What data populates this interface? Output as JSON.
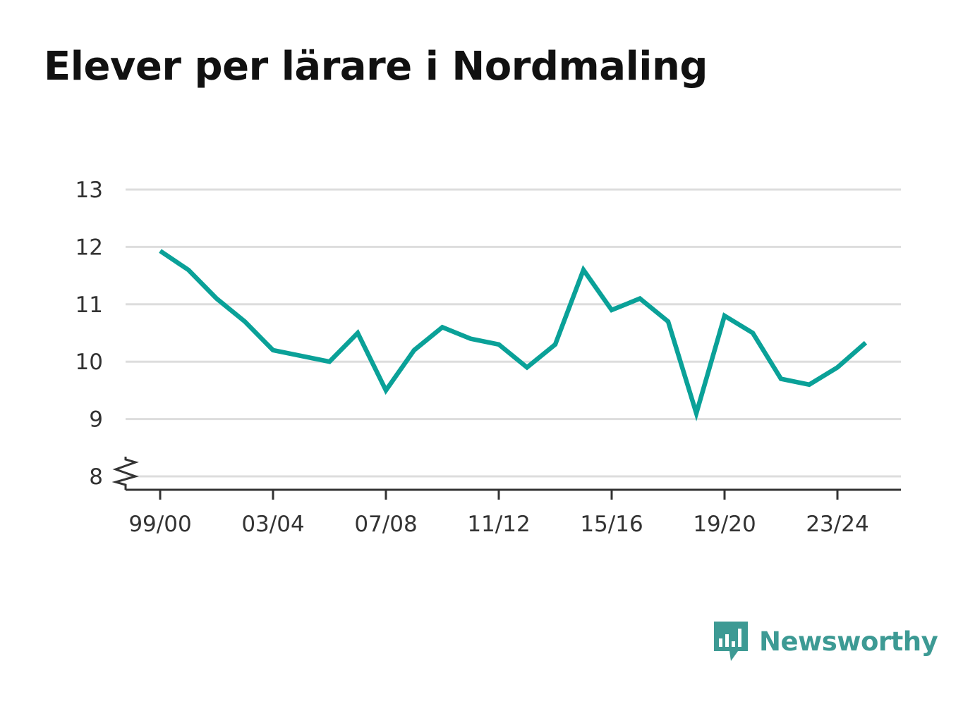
{
  "title": "Elever per lärare i Nordmaling",
  "brand": {
    "name": "Newsworthy",
    "color": "#3d9a94",
    "icon": "newsworthy-bar-chart-icon"
  },
  "colors": {
    "line": "#0aa198",
    "grid": "#dddddd",
    "axis": "#333333"
  },
  "chart_data": {
    "type": "line",
    "title": "Elever per lärare i Nordmaling",
    "xlabel": "",
    "ylabel": "",
    "ylim": [
      8,
      13
    ],
    "y_axis_break": true,
    "grid": true,
    "yticks": [
      8,
      9,
      10,
      11,
      12,
      13
    ],
    "xtick_labels": [
      "99/00",
      "03/04",
      "07/08",
      "11/12",
      "15/16",
      "19/20",
      "23/24"
    ],
    "x": [
      "99/00",
      "00/01",
      "01/02",
      "02/03",
      "03/04",
      "04/05",
      "05/06",
      "06/07",
      "07/08",
      "08/09",
      "09/10",
      "10/11",
      "11/12",
      "12/13",
      "13/14",
      "14/15",
      "15/16",
      "16/17",
      "17/18",
      "18/19",
      "19/20",
      "20/21",
      "21/22",
      "22/23",
      "23/24",
      "24/25"
    ],
    "series": [
      {
        "values": [
          11.93,
          11.6,
          11.1,
          10.7,
          10.2,
          10.1,
          10.0,
          10.5,
          9.5,
          10.2,
          10.6,
          10.4,
          10.3,
          9.9,
          10.3,
          11.6,
          10.9,
          11.1,
          10.7,
          9.1,
          10.8,
          10.5,
          9.7,
          9.6,
          9.9,
          10.33
        ]
      }
    ]
  }
}
